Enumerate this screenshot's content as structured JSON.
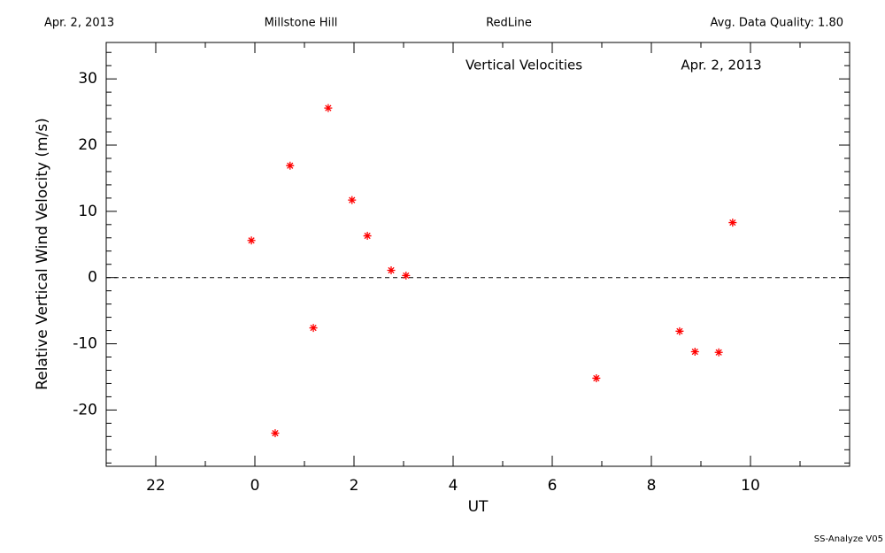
{
  "header": {
    "date": "Apr. 2, 2013",
    "site": "Millstone Hill",
    "instrument": "RedLine",
    "quality": "Avg. Data Quality: 1.80"
  },
  "footer": "SS-Analyze V05",
  "chart_data": {
    "type": "scatter",
    "title": "Vertical Velocities",
    "subtitle": "Apr. 2, 2013",
    "x_label": "UT",
    "y_label": "Relative Vertical Wind Velocity (m/s)",
    "x": [
      -0.07,
      0.41,
      0.71,
      1.18,
      1.48,
      1.96,
      2.27,
      2.75,
      3.05,
      6.89,
      8.57,
      8.88,
      9.36,
      9.64
    ],
    "values": [
      5.6,
      -23.5,
      16.9,
      -7.6,
      25.6,
      11.7,
      6.3,
      1.1,
      0.3,
      -15.2,
      -8.1,
      -11.2,
      -11.3,
      8.3
    ],
    "color": "#ff0000",
    "xlim": [
      -3,
      12
    ],
    "ylim": [
      -28.5,
      35.5
    ],
    "xticks": [
      {
        "value": -2,
        "label": "22"
      },
      0,
      2,
      4,
      6,
      8,
      10
    ],
    "yticks": [
      -20,
      -10,
      0,
      10,
      20,
      30
    ],
    "xminorticks": [
      -1,
      1,
      3,
      5,
      7,
      9,
      11
    ],
    "yminorticks": [
      -28,
      -26,
      -24,
      -22,
      -18,
      -16,
      -14,
      -12,
      -8,
      -6,
      -4,
      -2,
      2,
      4,
      6,
      8,
      12,
      14,
      16,
      18,
      22,
      24,
      26,
      28,
      32,
      34
    ],
    "reference_line": 0
  }
}
